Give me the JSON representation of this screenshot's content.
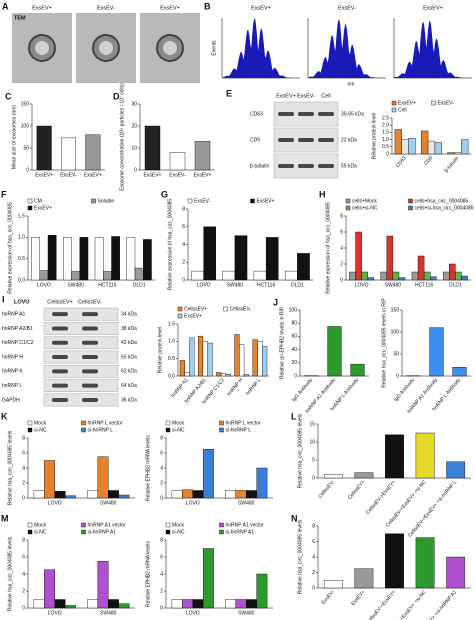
{
  "images": {
    "A": {
      "panel": "A",
      "title": "TEM",
      "captions": [
        "ExsEV+",
        "ExsEV-",
        "ExsEV+"
      ]
    },
    "B": {
      "panel": "B",
      "captions": [
        "ExsEV+",
        "ExsEV-",
        "ExsEV+"
      ],
      "y_label": "Events",
      "x_label": "nm"
    },
    "E": {
      "panel": "E",
      "columns": [
        "ExsEV+",
        "ExsEV-",
        "Cell"
      ],
      "rows": [
        {
          "name": "CD63",
          "size": "30-65 kDa"
        },
        {
          "name": "CD9",
          "size": "22 kDa"
        },
        {
          "name": "β-tubulin",
          "size": "55 kDa"
        }
      ]
    },
    "I": {
      "panel": "I",
      "title": "LOVO",
      "columns": [
        "CellssEV+",
        "CellssEV-"
      ],
      "rows": [
        {
          "name": "hnRNP A1",
          "size": "34 kDa"
        },
        {
          "name": "hnRNP A2/B1",
          "size": "38 kDa"
        },
        {
          "name": "hnRNP C1/C2",
          "size": "42 kDa"
        },
        {
          "name": "hnRNP H",
          "size": "50 kDa"
        },
        {
          "name": "hnRNP K",
          "size": "62 kDa"
        },
        {
          "name": "hnRNP L",
          "size": "64 kDa"
        },
        {
          "name": "GAPDH",
          "size": "36 kDa"
        }
      ]
    }
  },
  "chart_data": [
    {
      "type": "bar",
      "panel": "C",
      "y_label": "Mean size of exosomes (nm)",
      "categories": [
        "ExsEV+",
        "ExsEV-",
        "ExsEV+"
      ],
      "values": [
        100,
        73,
        80
      ],
      "colors": [
        "#222222",
        "#ffffff",
        "#999999"
      ],
      "ylim": [
        0,
        150
      ],
      "yticks": [
        0,
        50,
        100,
        150
      ]
    },
    {
      "type": "bar",
      "panel": "D",
      "y_label": "Exosome concentration (10⁸ particles / 10⁷ cells)",
      "categories": [
        "ExsEV+",
        "ExsEV-",
        "ExsEV+"
      ],
      "values": [
        20,
        8,
        13
      ],
      "colors": [
        "#222222",
        "#ffffff",
        "#999999"
      ],
      "ylim": [
        0,
        30
      ],
      "yticks": [
        0,
        10,
        20,
        30
      ]
    },
    {
      "type": "bar",
      "y_label": "Relative protein level",
      "categories": [
        "CD63",
        "CD9",
        "β-tubulin"
      ],
      "series": [
        {
          "name": "ExsEV+",
          "color": "#e8822a",
          "values": [
            1.7,
            1.6,
            0.1
          ]
        },
        {
          "name": "ExsEV-",
          "color": "#e8e8e8",
          "values": [
            1.0,
            0.9,
            0.1
          ]
        },
        {
          "name": "Cell",
          "color": "#9fd0f0",
          "values": [
            1.1,
            0.8,
            1.0
          ]
        }
      ],
      "ylim": [
        0,
        2.5
      ],
      "yticks": [
        0,
        0.5,
        {
          "value": 1,
          "label": "1.0"
        },
        1.5,
        {
          "value": 2,
          "label": "2.0"
        },
        2.5
      ]
    },
    {
      "type": "bar",
      "panel": "F",
      "y_label": "Relative expression of hsa_circ_0004085",
      "categories": [
        "LOVO",
        "SW480",
        "HCT116",
        "DLD1"
      ],
      "series": [
        {
          "name": "CM",
          "color": "#ffffff",
          "values": [
            1,
            1,
            1,
            1
          ]
        },
        {
          "name": "Soluble",
          "color": "#999999",
          "values": [
            0.22,
            0.2,
            0.2,
            0.28
          ]
        },
        {
          "name": "ExsEV+",
          "color": "#111111",
          "values": [
            1.05,
            1.0,
            1.02,
            0.95
          ]
        }
      ],
      "ylim": [
        0,
        1.5
      ],
      "yticks": [
        {
          "value": 0,
          "label": "0.0"
        },
        0.5,
        {
          "value": 1,
          "label": "1.0"
        },
        1.5
      ]
    },
    {
      "type": "bar",
      "panel": "G",
      "y_label": "Relative expression of hsa_circ_0004085",
      "categories": [
        "LOVO",
        "SW480",
        "HCT116",
        "DLD1"
      ],
      "series": [
        {
          "name": "ExsEV-",
          "color": "#ffffff",
          "values": [
            1,
            1,
            1,
            1
          ]
        },
        {
          "name": "ExsEV+",
          "color": "#111111",
          "values": [
            6,
            5,
            4.8,
            3
          ]
        }
      ],
      "ylim": [
        0,
        8
      ],
      "yticks": [
        0,
        2,
        4,
        6,
        8
      ]
    },
    {
      "type": "bar",
      "panel": "H",
      "y_label": "Relative expression of hsa_circ_0004085",
      "categories": [
        "LOVO",
        "SW480",
        "HCT116",
        "DLD1"
      ],
      "series": [
        {
          "name": "cells+Mock",
          "color": "#9a9a9a",
          "values": [
            1,
            1,
            1,
            1
          ]
        },
        {
          "name": "cells+hsa_circ_0004085",
          "color": "#d9342b",
          "values": [
            6,
            5.5,
            3,
            2
          ]
        },
        {
          "name": "cells+si-NC",
          "color": "#5bb548",
          "values": [
            1,
            1,
            1,
            1
          ]
        },
        {
          "name": "cells+si-hsa_circ_0004085",
          "color": "#3b7fd9",
          "values": [
            0.3,
            0.3,
            0.4,
            0.5
          ]
        }
      ],
      "ylim": [
        0,
        8
      ],
      "yticks": [
        0,
        2,
        4,
        6,
        8
      ]
    },
    {
      "type": "bar",
      "y_label": "Relative protein level",
      "categories": [
        "hnRNP A1",
        "hnRNP A2/B1",
        "hnRNP C1/C2",
        "hnRNP H",
        "hnRNP L"
      ],
      "series": [
        {
          "name": "CellssEV+",
          "color": "#e8822a",
          "values": [
            0.45,
            1.15,
            0.1,
            1.2,
            1.05
          ]
        },
        {
          "name": "CellssEV-",
          "color": "#ffffff",
          "values": [
            0.1,
            1.0,
            0.08,
            0.9,
            1.0
          ]
        },
        {
          "name": "ExsEV+",
          "color": "#9fd0f0",
          "values": [
            1.1,
            0.95,
            0.05,
            0.05,
            0.85
          ]
        }
      ],
      "ylim": [
        0,
        1.5
      ],
      "yticks": [
        {
          "value": 0,
          "label": "0.0"
        },
        0.5,
        {
          "value": 1,
          "label": "1.0"
        },
        1.5
      ]
    },
    {
      "type": "bar",
      "panel": "J",
      "y_label": "Relative pri-EPHB2 levels in RIP",
      "categories": [
        "IgG Antibody",
        "hnRNP A1 Antibody",
        "hnRNP L Antibody"
      ],
      "values": [
        0.5,
        75,
        18
      ],
      "color": "#2e9a2e",
      "ylim": [
        0,
        100
      ],
      "yticks": [
        0,
        20,
        40,
        60,
        80,
        100
      ]
    },
    {
      "type": "bar",
      "y_label": "Relative hsa_circ_0004085 levels in RIP",
      "categories": [
        "IgG Antibody",
        "hnRNP A1 Antibody",
        "hnRNP L Antibody"
      ],
      "values": [
        0.5,
        110,
        20
      ],
      "color": "#3b8ff0",
      "ylim": [
        0,
        150
      ],
      "yticks": [
        0,
        50,
        100,
        150
      ]
    },
    {
      "type": "bar",
      "panel": "K",
      "y_label": "Relative hsa_circ_0004085 levels",
      "categories": [
        "LOVO",
        "SW480"
      ],
      "series": [
        {
          "name": "Mock",
          "color": "#ffffff",
          "values": [
            1,
            1
          ]
        },
        {
          "name": "hnRNP L vector",
          "color": "#e8822a",
          "values": [
            5,
            5.5
          ]
        },
        {
          "name": "si-NC",
          "color": "#111111",
          "values": [
            0.9,
            1
          ]
        },
        {
          "name": "si-hnRNP L",
          "color": "#3b7fd9",
          "values": [
            0.3,
            0.4
          ]
        }
      ],
      "ylim": [
        0,
        8
      ],
      "yticks": [
        0,
        2,
        4,
        6,
        8
      ]
    },
    {
      "type": "bar",
      "y_label": "Relative EPHB2 mRNA levels",
      "categories": [
        "LOVO",
        "SW480"
      ],
      "series": [
        {
          "name": "Mock",
          "color": "#ffffff",
          "values": [
            1,
            1
          ]
        },
        {
          "name": "hnRNP L vector",
          "color": "#e8822a",
          "values": [
            1.1,
            1
          ]
        },
        {
          "name": "si-NC",
          "color": "#111111",
          "values": [
            1,
            1
          ]
        },
        {
          "name": "si-hnRNP L",
          "color": "#3b7fd9",
          "values": [
            6.5,
            4
          ]
        }
      ],
      "ylim": [
        0,
        8
      ],
      "yticks": [
        0,
        2,
        4,
        6,
        8
      ]
    },
    {
      "type": "bar",
      "panel": "L",
      "y_label": "Relative hsa_circ_0004085 levels",
      "categories": [
        "CellssEV-",
        "CellssEV+",
        "CellssEV-+ExsEV+",
        "CellssEV-+ExsEV+ +si-NC",
        "CellssEV-+ExsEV+ +si-hnRNP L"
      ],
      "values": [
        1,
        1.5,
        12,
        12.5,
        4.5
      ],
      "colors": [
        "#ffffff",
        "#9a9a9a",
        "#111111",
        "#e8d82a",
        "#3b7fd9"
      ],
      "ylim": [
        0,
        15
      ],
      "yticks": [
        0,
        5,
        10,
        15
      ]
    },
    {
      "type": "bar",
      "panel": "M",
      "y_label": "Relative hsa_circ_0004085 levels",
      "categories": [
        "LOVO",
        "SW480"
      ],
      "series": [
        {
          "name": "Mock",
          "color": "#ffffff",
          "values": [
            1,
            1
          ]
        },
        {
          "name": "hnRNP A1 vector",
          "color": "#b04fd0",
          "values": [
            4.5,
            5.5
          ]
        },
        {
          "name": "si-NC",
          "color": "#111111",
          "values": [
            1,
            1
          ]
        },
        {
          "name": "si-hnRNP A1",
          "color": "#2e9a2e",
          "values": [
            0.3,
            0.5
          ]
        }
      ],
      "ylim": [
        0,
        8
      ],
      "yticks": [
        0,
        2,
        4,
        6,
        8
      ]
    },
    {
      "type": "bar",
      "y_label": "Relative EPHB2 mRNA levels",
      "categories": [
        "LOVO",
        "SW480"
      ],
      "series": [
        {
          "name": "Mock",
          "color": "#ffffff",
          "values": [
            1,
            1
          ]
        },
        {
          "name": "hnRNP A1 vector",
          "color": "#b04fd0",
          "values": [
            1,
            1
          ]
        },
        {
          "name": "si-NC",
          "color": "#111111",
          "values": [
            1,
            1
          ]
        },
        {
          "name": "si-hnRNP A1",
          "color": "#2e9a2e",
          "values": [
            7,
            4
          ]
        }
      ],
      "ylim": [
        0,
        8
      ],
      "yticks": [
        0,
        2,
        4,
        6,
        8
      ]
    },
    {
      "type": "bar",
      "panel": "N",
      "y_label": "Relative hsa_circ_0004085 levels",
      "categories": [
        "ExsEV-",
        "ExsEV+",
        "CellssEV-+ExsEV+",
        "CellssEV-+ExsEV+ +si-NC",
        "CellssEV-+ExsEV+ +si-hnRNP A1"
      ],
      "values": [
        1,
        2.5,
        7,
        6.5,
        4
      ],
      "colors": [
        "#ffffff",
        "#9a9a9a",
        "#111111",
        "#2e9a2e",
        "#b04fd0"
      ],
      "ylim": [
        0,
        8
      ],
      "yticks": [
        0,
        2,
        4,
        6,
        8
      ]
    }
  ]
}
